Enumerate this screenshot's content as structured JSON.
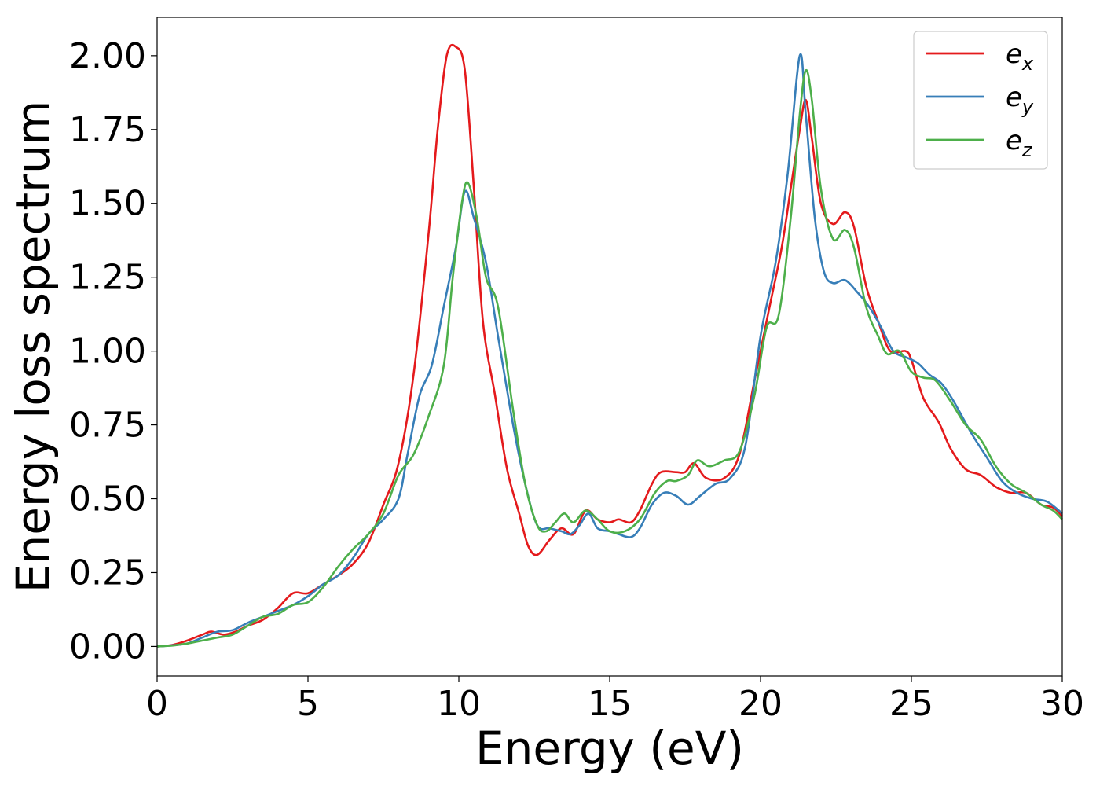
{
  "chart_data": {
    "type": "line",
    "title": "",
    "xlabel": "Energy (eV)",
    "ylabel": "Energy loss spectrum",
    "xlim": [
      0,
      30
    ],
    "ylim": [
      -0.1,
      2.13
    ],
    "xticks": [
      "0",
      "5",
      "10",
      "15",
      "20",
      "25",
      "30"
    ],
    "yticks": [
      "0.00",
      "0.25",
      "0.50",
      "0.75",
      "1.00",
      "1.25",
      "1.50",
      "1.75",
      "2.00"
    ],
    "grid": false,
    "legend": "top-right",
    "series": [
      {
        "name": "e_x",
        "label_base": "e",
        "label_sub": "x",
        "color": "#e41a1c",
        "points": [
          [
            0,
            0.0
          ],
          [
            0.5,
            0.005
          ],
          [
            1.0,
            0.02
          ],
          [
            1.5,
            0.04
          ],
          [
            1.8,
            0.05
          ],
          [
            2.2,
            0.04
          ],
          [
            2.6,
            0.05
          ],
          [
            3.0,
            0.07
          ],
          [
            3.5,
            0.09
          ],
          [
            4.0,
            0.13
          ],
          [
            4.5,
            0.18
          ],
          [
            5.0,
            0.18
          ],
          [
            5.5,
            0.21
          ],
          [
            6.0,
            0.24
          ],
          [
            6.5,
            0.28
          ],
          [
            7.0,
            0.35
          ],
          [
            7.5,
            0.48
          ],
          [
            8.0,
            0.62
          ],
          [
            8.5,
            0.92
          ],
          [
            9.0,
            1.4
          ],
          [
            9.3,
            1.75
          ],
          [
            9.6,
            2.0
          ],
          [
            9.9,
            2.03
          ],
          [
            10.2,
            1.95
          ],
          [
            10.5,
            1.55
          ],
          [
            10.8,
            1.1
          ],
          [
            11.2,
            0.85
          ],
          [
            11.6,
            0.6
          ],
          [
            12.0,
            0.45
          ],
          [
            12.3,
            0.34
          ],
          [
            12.6,
            0.31
          ],
          [
            13.0,
            0.36
          ],
          [
            13.4,
            0.4
          ],
          [
            13.8,
            0.38
          ],
          [
            14.2,
            0.46
          ],
          [
            14.6,
            0.43
          ],
          [
            15.0,
            0.42
          ],
          [
            15.3,
            0.43
          ],
          [
            15.7,
            0.42
          ],
          [
            16.0,
            0.46
          ],
          [
            16.4,
            0.55
          ],
          [
            16.7,
            0.59
          ],
          [
            17.2,
            0.59
          ],
          [
            17.5,
            0.59
          ],
          [
            17.8,
            0.62
          ],
          [
            18.2,
            0.57
          ],
          [
            18.8,
            0.57
          ],
          [
            19.3,
            0.65
          ],
          [
            19.8,
            0.9
          ],
          [
            20.3,
            1.15
          ],
          [
            20.7,
            1.35
          ],
          [
            21.0,
            1.55
          ],
          [
            21.3,
            1.75
          ],
          [
            21.5,
            1.85
          ],
          [
            21.7,
            1.72
          ],
          [
            22.0,
            1.5
          ],
          [
            22.4,
            1.43
          ],
          [
            22.8,
            1.47
          ],
          [
            23.1,
            1.42
          ],
          [
            23.5,
            1.22
          ],
          [
            23.9,
            1.1
          ],
          [
            24.3,
            1.0
          ],
          [
            24.8,
            1.0
          ],
          [
            25.0,
            0.97
          ],
          [
            25.4,
            0.84
          ],
          [
            25.9,
            0.76
          ],
          [
            26.3,
            0.67
          ],
          [
            26.8,
            0.6
          ],
          [
            27.3,
            0.58
          ],
          [
            27.8,
            0.54
          ],
          [
            28.3,
            0.52
          ],
          [
            28.8,
            0.52
          ],
          [
            29.3,
            0.48
          ],
          [
            29.7,
            0.47
          ],
          [
            30.0,
            0.44
          ]
        ]
      },
      {
        "name": "e_y",
        "label_base": "e",
        "label_sub": "y",
        "color": "#377eb8",
        "points": [
          [
            0,
            0.0
          ],
          [
            0.5,
            0.004
          ],
          [
            1.0,
            0.01
          ],
          [
            1.5,
            0.03
          ],
          [
            2.0,
            0.05
          ],
          [
            2.5,
            0.055
          ],
          [
            3.0,
            0.08
          ],
          [
            3.5,
            0.1
          ],
          [
            4.0,
            0.12
          ],
          [
            4.5,
            0.14
          ],
          [
            5.0,
            0.17
          ],
          [
            5.5,
            0.21
          ],
          [
            6.0,
            0.24
          ],
          [
            6.5,
            0.3
          ],
          [
            7.0,
            0.38
          ],
          [
            7.5,
            0.43
          ],
          [
            8.0,
            0.5
          ],
          [
            8.3,
            0.65
          ],
          [
            8.7,
            0.85
          ],
          [
            9.1,
            0.95
          ],
          [
            9.5,
            1.15
          ],
          [
            9.9,
            1.35
          ],
          [
            10.2,
            1.54
          ],
          [
            10.5,
            1.45
          ],
          [
            10.9,
            1.3
          ],
          [
            11.3,
            1.05
          ],
          [
            11.8,
            0.75
          ],
          [
            12.2,
            0.55
          ],
          [
            12.6,
            0.41
          ],
          [
            13.0,
            0.4
          ],
          [
            13.4,
            0.39
          ],
          [
            13.7,
            0.38
          ],
          [
            14.0,
            0.41
          ],
          [
            14.3,
            0.45
          ],
          [
            14.6,
            0.4
          ],
          [
            15.0,
            0.39
          ],
          [
            15.3,
            0.38
          ],
          [
            15.7,
            0.37
          ],
          [
            16.0,
            0.4
          ],
          [
            16.4,
            0.48
          ],
          [
            16.8,
            0.52
          ],
          [
            17.2,
            0.51
          ],
          [
            17.6,
            0.48
          ],
          [
            18.0,
            0.51
          ],
          [
            18.5,
            0.55
          ],
          [
            19.0,
            0.57
          ],
          [
            19.5,
            0.68
          ],
          [
            20.0,
            1.05
          ],
          [
            20.5,
            1.3
          ],
          [
            20.9,
            1.6
          ],
          [
            21.3,
            2.0
          ],
          [
            21.5,
            1.8
          ],
          [
            21.8,
            1.45
          ],
          [
            22.1,
            1.27
          ],
          [
            22.4,
            1.23
          ],
          [
            22.8,
            1.24
          ],
          [
            23.2,
            1.2
          ],
          [
            23.6,
            1.15
          ],
          [
            24.0,
            1.08
          ],
          [
            24.4,
            1.0
          ],
          [
            24.8,
            0.98
          ],
          [
            25.2,
            0.96
          ],
          [
            25.6,
            0.92
          ],
          [
            26.0,
            0.89
          ],
          [
            26.4,
            0.83
          ],
          [
            27.0,
            0.72
          ],
          [
            27.5,
            0.64
          ],
          [
            28.0,
            0.56
          ],
          [
            28.5,
            0.52
          ],
          [
            29.0,
            0.5
          ],
          [
            29.5,
            0.49
          ],
          [
            30.0,
            0.45
          ]
        ]
      },
      {
        "name": "e_z",
        "label_base": "e",
        "label_sub": "z",
        "color": "#4daf4a",
        "points": [
          [
            0,
            0.0
          ],
          [
            0.5,
            0.003
          ],
          [
            1.0,
            0.01
          ],
          [
            1.5,
            0.02
          ],
          [
            2.0,
            0.03
          ],
          [
            2.5,
            0.04
          ],
          [
            3.0,
            0.07
          ],
          [
            3.5,
            0.1
          ],
          [
            4.0,
            0.11
          ],
          [
            4.5,
            0.14
          ],
          [
            5.0,
            0.15
          ],
          [
            5.5,
            0.2
          ],
          [
            6.0,
            0.27
          ],
          [
            6.5,
            0.33
          ],
          [
            7.0,
            0.38
          ],
          [
            7.5,
            0.45
          ],
          [
            8.0,
            0.58
          ],
          [
            8.5,
            0.65
          ],
          [
            9.0,
            0.78
          ],
          [
            9.5,
            0.95
          ],
          [
            9.8,
            1.25
          ],
          [
            10.1,
            1.5
          ],
          [
            10.3,
            1.57
          ],
          [
            10.6,
            1.45
          ],
          [
            10.9,
            1.25
          ],
          [
            11.3,
            1.15
          ],
          [
            11.8,
            0.8
          ],
          [
            12.2,
            0.55
          ],
          [
            12.6,
            0.41
          ],
          [
            12.9,
            0.39
          ],
          [
            13.2,
            0.42
          ],
          [
            13.5,
            0.45
          ],
          [
            13.8,
            0.42
          ],
          [
            14.2,
            0.46
          ],
          [
            14.6,
            0.43
          ],
          [
            15.0,
            0.39
          ],
          [
            15.5,
            0.39
          ],
          [
            16.0,
            0.43
          ],
          [
            16.5,
            0.52
          ],
          [
            16.9,
            0.56
          ],
          [
            17.2,
            0.56
          ],
          [
            17.6,
            0.58
          ],
          [
            17.9,
            0.63
          ],
          [
            18.3,
            0.61
          ],
          [
            18.8,
            0.63
          ],
          [
            19.3,
            0.66
          ],
          [
            19.8,
            0.85
          ],
          [
            20.2,
            1.08
          ],
          [
            20.6,
            1.12
          ],
          [
            21.0,
            1.45
          ],
          [
            21.3,
            1.8
          ],
          [
            21.5,
            1.95
          ],
          [
            21.7,
            1.85
          ],
          [
            22.0,
            1.55
          ],
          [
            22.4,
            1.38
          ],
          [
            22.8,
            1.41
          ],
          [
            23.1,
            1.35
          ],
          [
            23.5,
            1.15
          ],
          [
            23.9,
            1.05
          ],
          [
            24.2,
            0.99
          ],
          [
            24.6,
            1.0
          ],
          [
            25.0,
            0.93
          ],
          [
            25.4,
            0.91
          ],
          [
            25.8,
            0.9
          ],
          [
            26.3,
            0.83
          ],
          [
            26.8,
            0.75
          ],
          [
            27.3,
            0.7
          ],
          [
            27.8,
            0.61
          ],
          [
            28.3,
            0.55
          ],
          [
            28.8,
            0.52
          ],
          [
            29.3,
            0.48
          ],
          [
            29.7,
            0.46
          ],
          [
            30.0,
            0.43
          ]
        ]
      }
    ]
  }
}
